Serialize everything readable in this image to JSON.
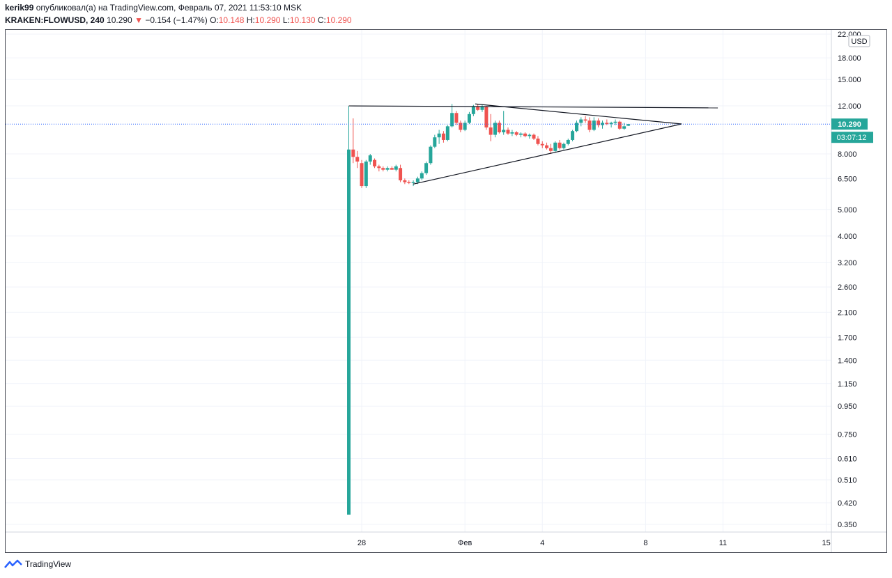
{
  "header": {
    "author": "kerik99",
    "published_text": "опубликовал(а) на TradingView.com, Февраль 07, 2021 11:53:10 MSK",
    "symbol": "KRAKEN:FLOWUSD, 240",
    "last": "10.290",
    "arrow": "▼",
    "change": "−0.154 (−1.47%)",
    "o_label": "O:",
    "o_value": "10.148",
    "h_label": "H:",
    "h_value": "10.290",
    "l_label": "L:",
    "l_value": "10.130",
    "c_label": "C:",
    "c_value": "10.290"
  },
  "price_axis": {
    "currency": "USD",
    "last_price_label": "10.290",
    "countdown": "03:07:12"
  },
  "footer": {
    "brand": "TradingView"
  },
  "colors": {
    "up": "#26a69a",
    "down": "#ef5350",
    "grid": "#f0f3fa",
    "last_line": "#2962ff"
  },
  "chart_data": {
    "type": "candlestick",
    "title": "",
    "y_scale": "log",
    "ylim": [
      0.33,
      23
    ],
    "y_ticks": [
      "22.000",
      "18.000",
      "15.000",
      "12.000",
      "8.000",
      "6.500",
      "5.000",
      "4.000",
      "3.200",
      "2.600",
      "2.100",
      "1.700",
      "1.400",
      "1.150",
      "0.950",
      "0.750",
      "0.610",
      "0.510",
      "0.420",
      "0.350"
    ],
    "x_ticks": [
      {
        "label": "28",
        "day": 28
      },
      {
        "label": "Фев",
        "day": 32
      },
      {
        "label": "4",
        "day": 35
      },
      {
        "label": "8",
        "day": 39
      },
      {
        "label": "11",
        "day": 42
      },
      {
        "label": "15",
        "day": 46
      }
    ],
    "xlim": [
      14.2,
      46.2
    ],
    "last_price": 10.29,
    "candles": [
      {
        "d": 27.5,
        "o": 0.38,
        "h": 12.0,
        "l": 0.38,
        "c": 8.3
      },
      {
        "d": 27.67,
        "o": 8.3,
        "h": 10.8,
        "l": 7.4,
        "c": 7.8
      },
      {
        "d": 27.83,
        "o": 7.8,
        "h": 8.2,
        "l": 7.1,
        "c": 7.5
      },
      {
        "d": 28.0,
        "o": 7.4,
        "h": 7.6,
        "l": 6.0,
        "c": 6.1
      },
      {
        "d": 28.17,
        "o": 6.1,
        "h": 7.6,
        "l": 6.0,
        "c": 7.5
      },
      {
        "d": 28.33,
        "o": 7.5,
        "h": 8.0,
        "l": 7.3,
        "c": 7.9
      },
      {
        "d": 28.5,
        "o": 7.6,
        "h": 7.7,
        "l": 7.1,
        "c": 7.2
      },
      {
        "d": 28.67,
        "o": 7.2,
        "h": 7.3,
        "l": 6.9,
        "c": 7.1
      },
      {
        "d": 28.83,
        "o": 7.1,
        "h": 7.2,
        "l": 6.9,
        "c": 7.0
      },
      {
        "d": 29.0,
        "o": 7.0,
        "h": 7.2,
        "l": 6.9,
        "c": 7.1
      },
      {
        "d": 29.17,
        "o": 7.1,
        "h": 7.2,
        "l": 7.0,
        "c": 7.0
      },
      {
        "d": 29.33,
        "o": 7.0,
        "h": 7.3,
        "l": 6.9,
        "c": 7.2
      },
      {
        "d": 29.5,
        "o": 7.1,
        "h": 7.3,
        "l": 6.3,
        "c": 6.4
      },
      {
        "d": 29.67,
        "o": 6.4,
        "h": 6.5,
        "l": 6.2,
        "c": 6.3
      },
      {
        "d": 29.83,
        "o": 6.3,
        "h": 6.4,
        "l": 6.2,
        "c": 6.25
      },
      {
        "d": 30.0,
        "o": 6.25,
        "h": 6.4,
        "l": 6.1,
        "c": 6.3
      },
      {
        "d": 30.17,
        "o": 6.3,
        "h": 6.6,
        "l": 6.2,
        "c": 6.5
      },
      {
        "d": 30.33,
        "o": 6.5,
        "h": 6.9,
        "l": 6.4,
        "c": 6.8
      },
      {
        "d": 30.5,
        "o": 6.8,
        "h": 7.5,
        "l": 6.7,
        "c": 7.4
      },
      {
        "d": 30.67,
        "o": 7.4,
        "h": 8.6,
        "l": 7.3,
        "c": 8.5
      },
      {
        "d": 30.83,
        "o": 8.5,
        "h": 9.4,
        "l": 8.4,
        "c": 9.2
      },
      {
        "d": 31.0,
        "o": 9.2,
        "h": 9.8,
        "l": 8.7,
        "c": 9.5
      },
      {
        "d": 31.17,
        "o": 9.5,
        "h": 9.7,
        "l": 8.8,
        "c": 9.0
      },
      {
        "d": 31.33,
        "o": 9.0,
        "h": 10.2,
        "l": 8.9,
        "c": 10.1
      },
      {
        "d": 31.5,
        "o": 10.1,
        "h": 12.2,
        "l": 10.0,
        "c": 11.3
      },
      {
        "d": 31.67,
        "o": 11.3,
        "h": 11.5,
        "l": 10.2,
        "c": 10.4
      },
      {
        "d": 31.83,
        "o": 10.4,
        "h": 10.6,
        "l": 9.6,
        "c": 9.8
      },
      {
        "d": 32.0,
        "o": 9.8,
        "h": 10.6,
        "l": 9.7,
        "c": 10.4
      },
      {
        "d": 32.17,
        "o": 10.4,
        "h": 11.4,
        "l": 10.3,
        "c": 11.2
      },
      {
        "d": 32.33,
        "o": 11.2,
        "h": 12.1,
        "l": 11.0,
        "c": 11.9
      },
      {
        "d": 32.5,
        "o": 11.9,
        "h": 12.2,
        "l": 11.5,
        "c": 11.6
      },
      {
        "d": 32.67,
        "o": 11.6,
        "h": 12.1,
        "l": 11.4,
        "c": 11.9
      },
      {
        "d": 32.83,
        "o": 11.9,
        "h": 12.0,
        "l": 9.8,
        "c": 10.0
      },
      {
        "d": 33.0,
        "o": 10.0,
        "h": 11.2,
        "l": 8.9,
        "c": 9.4
      },
      {
        "d": 33.17,
        "o": 9.4,
        "h": 10.6,
        "l": 9.2,
        "c": 10.4
      },
      {
        "d": 33.33,
        "o": 10.4,
        "h": 10.6,
        "l": 9.5,
        "c": 9.6
      },
      {
        "d": 33.5,
        "o": 9.6,
        "h": 11.5,
        "l": 9.4,
        "c": 9.8
      },
      {
        "d": 33.67,
        "o": 9.8,
        "h": 10.0,
        "l": 9.4,
        "c": 9.5
      },
      {
        "d": 33.83,
        "o": 9.5,
        "h": 9.8,
        "l": 9.3,
        "c": 9.6
      },
      {
        "d": 34.0,
        "o": 9.6,
        "h": 9.7,
        "l": 9.3,
        "c": 9.4
      },
      {
        "d": 34.17,
        "o": 9.4,
        "h": 9.6,
        "l": 9.2,
        "c": 9.5
      },
      {
        "d": 34.33,
        "o": 9.5,
        "h": 9.6,
        "l": 9.2,
        "c": 9.3
      },
      {
        "d": 34.5,
        "o": 9.3,
        "h": 9.5,
        "l": 9.1,
        "c": 9.4
      },
      {
        "d": 34.67,
        "o": 9.4,
        "h": 9.5,
        "l": 9.0,
        "c": 9.1
      },
      {
        "d": 34.83,
        "o": 9.1,
        "h": 9.3,
        "l": 8.6,
        "c": 8.7
      },
      {
        "d": 35.0,
        "o": 8.7,
        "h": 8.9,
        "l": 8.4,
        "c": 8.6
      },
      {
        "d": 35.17,
        "o": 8.6,
        "h": 8.8,
        "l": 8.3,
        "c": 8.4
      },
      {
        "d": 35.33,
        "o": 8.4,
        "h": 8.7,
        "l": 8.0,
        "c": 8.2
      },
      {
        "d": 35.5,
        "o": 8.2,
        "h": 8.9,
        "l": 8.1,
        "c": 8.8
      },
      {
        "d": 35.67,
        "o": 8.8,
        "h": 9.0,
        "l": 8.3,
        "c": 8.4
      },
      {
        "d": 35.83,
        "o": 8.4,
        "h": 8.8,
        "l": 8.3,
        "c": 8.7
      },
      {
        "d": 36.0,
        "o": 8.7,
        "h": 9.1,
        "l": 8.6,
        "c": 9.0
      },
      {
        "d": 36.17,
        "o": 9.0,
        "h": 9.8,
        "l": 8.9,
        "c": 9.7
      },
      {
        "d": 36.33,
        "o": 9.7,
        "h": 10.6,
        "l": 9.6,
        "c": 10.4
      },
      {
        "d": 36.5,
        "o": 10.4,
        "h": 10.9,
        "l": 10.1,
        "c": 10.7
      },
      {
        "d": 36.67,
        "o": 10.7,
        "h": 11.0,
        "l": 10.4,
        "c": 10.6
      },
      {
        "d": 36.83,
        "o": 10.6,
        "h": 10.9,
        "l": 9.6,
        "c": 9.8
      },
      {
        "d": 37.0,
        "o": 9.8,
        "h": 10.9,
        "l": 9.7,
        "c": 10.6
      },
      {
        "d": 37.17,
        "o": 10.6,
        "h": 10.8,
        "l": 10.0,
        "c": 10.2
      },
      {
        "d": 37.33,
        "o": 10.2,
        "h": 10.6,
        "l": 9.9,
        "c": 10.4
      },
      {
        "d": 37.5,
        "o": 10.4,
        "h": 10.7,
        "l": 10.2,
        "c": 10.3
      },
      {
        "d": 37.67,
        "o": 10.3,
        "h": 10.5,
        "l": 10.0,
        "c": 10.4
      },
      {
        "d": 37.83,
        "o": 10.4,
        "h": 10.7,
        "l": 10.2,
        "c": 10.5
      },
      {
        "d": 38.0,
        "o": 10.5,
        "h": 10.6,
        "l": 9.8,
        "c": 9.9
      },
      {
        "d": 38.17,
        "o": 9.9,
        "h": 10.4,
        "l": 9.8,
        "c": 10.1
      },
      {
        "d": 38.33,
        "o": 10.148,
        "h": 10.29,
        "l": 10.13,
        "c": 10.29
      }
    ],
    "drawings": [
      {
        "p1": [
          27.5,
          12.0
        ],
        "p2": [
          41.8,
          11.8
        ]
      },
      {
        "p1": [
          32.4,
          12.2
        ],
        "p2": [
          40.4,
          10.3
        ]
      },
      {
        "p1": [
          30.0,
          6.2
        ],
        "p2": [
          40.4,
          10.3
        ]
      }
    ]
  }
}
